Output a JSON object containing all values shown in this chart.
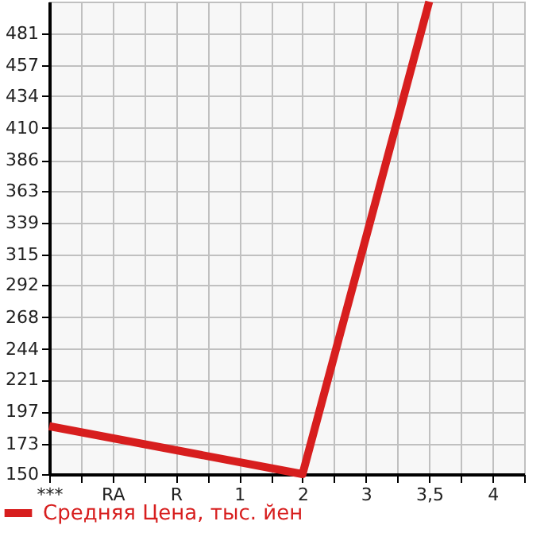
{
  "chart_data": {
    "type": "line",
    "categories": [
      "***",
      "RA",
      "R",
      "1",
      "2",
      "3",
      "3,5",
      "4"
    ],
    "series": [
      {
        "name": "Средняя Цена, тыс. йен",
        "color": "#d71e1e",
        "values": [
          186,
          null,
          null,
          null,
          150,
          null,
          505,
          null
        ]
      }
    ],
    "ylim": [
      150,
      505
    ],
    "yticks": [
      150,
      173,
      197,
      221,
      244,
      268,
      292,
      315,
      339,
      363,
      386,
      410,
      434,
      457,
      481
    ],
    "grid": true,
    "legend": "bottom left",
    "marker": "none",
    "line_style": "solid"
  }
}
